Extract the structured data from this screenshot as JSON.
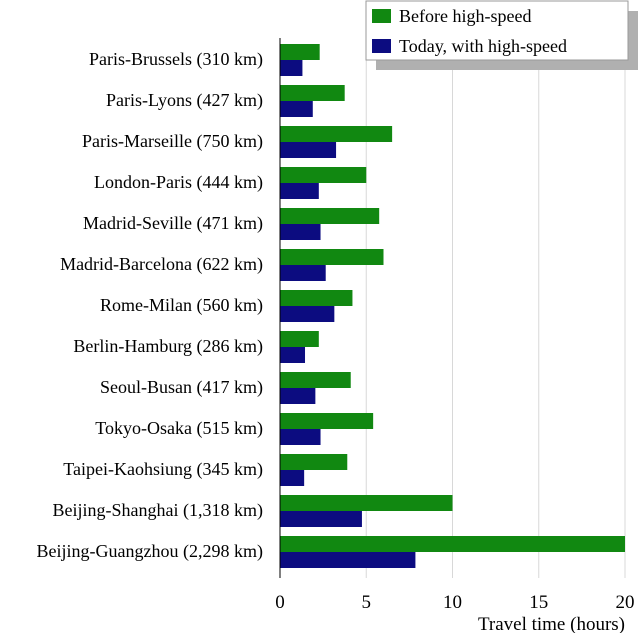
{
  "chart_data": {
    "type": "bar",
    "orientation": "horizontal",
    "categories": [
      "Paris-Brussels (310 km)",
      "Paris-Lyons (427 km)",
      "Paris-Marseille (750 km)",
      "London-Paris (444 km)",
      "Madrid-Seville (471 km)",
      "Madrid-Barcelona (622 km)",
      "Rome-Milan (560 km)",
      "Berlin-Hamburg (286 km)",
      "Seoul-Busan (417 km)",
      "Tokyo-Osaka (515 km)",
      "Taipei-Kaohsiung (345 km)",
      "Beijing-Shanghai (1,318 km)",
      "Beijing-Guangzhou (2,298 km)"
    ],
    "series": [
      {
        "name": "Before high-speed",
        "color": "#118811",
        "values": [
          2.3,
          3.75,
          6.5,
          5.0,
          5.75,
          6.0,
          4.2,
          2.25,
          4.1,
          5.4,
          3.9,
          10.0,
          20.0
        ]
      },
      {
        "name": "Today, with high-speed",
        "color": "#0c0c80",
        "values": [
          1.3,
          1.9,
          3.25,
          2.25,
          2.35,
          2.65,
          3.15,
          1.45,
          2.05,
          2.35,
          1.4,
          4.75,
          7.85
        ]
      }
    ],
    "xlabel": "Travel time (hours)",
    "ylabel": "",
    "xlim": [
      0,
      20
    ],
    "xticks": [
      "0",
      "5",
      "10",
      "15",
      "20"
    ],
    "grid": "vertical",
    "legend_position": "top-right"
  }
}
